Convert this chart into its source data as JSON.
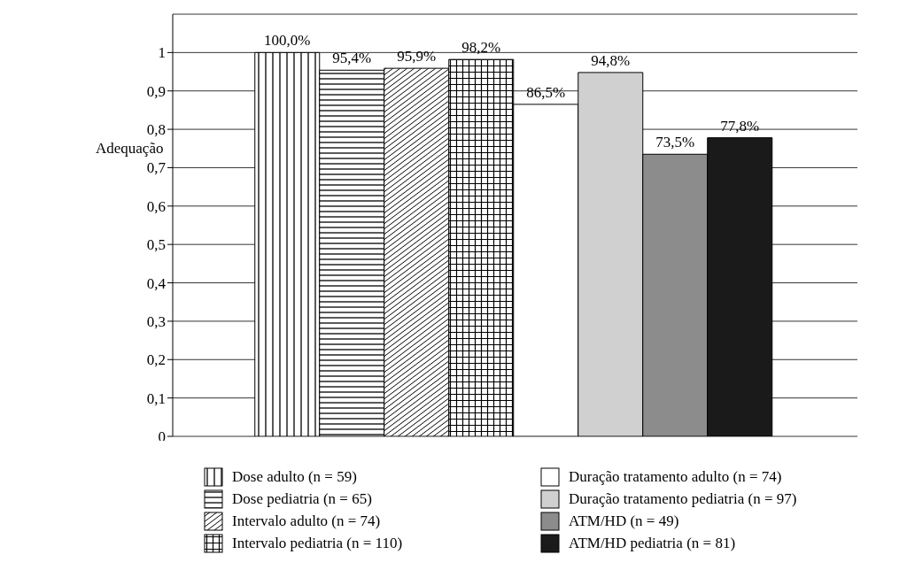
{
  "chart_data": {
    "type": "bar",
    "ylabel": "Adequação",
    "categories": [
      null
    ],
    "series": [
      {
        "name": "Dose adulto (n = 59)",
        "color": "#000000",
        "values": [
          1.0
        ],
        "value_labels": [
          "100,0%"
        ]
      },
      {
        "name": "Dose pediatria (n = 65)",
        "color": "#000000",
        "values": [
          0.954
        ],
        "value_labels": [
          "95,4%"
        ]
      },
      {
        "name": "Intervalo adulto (n = 74)",
        "color": "#000000",
        "values": [
          0.959
        ],
        "value_labels": [
          "95,9%"
        ]
      },
      {
        "name": "Intervalo pediatria (n = 110)",
        "color": "#000000",
        "values": [
          0.982
        ],
        "value_labels": [
          "98,2%"
        ]
      },
      {
        "name": "Duração tratamento adulto (n = 74)",
        "color": "#ffffff",
        "values": [
          0.865
        ],
        "value_labels": [
          "86,5%"
        ]
      },
      {
        "name": "Duração tratamento pediatria (n = 97)",
        "color": "#d0d0d0",
        "values": [
          0.948
        ],
        "value_labels": [
          "94,8%"
        ]
      },
      {
        "name": "ATM/HD (n = 49)",
        "color": "#8c8c8c",
        "values": [
          0.735
        ],
        "value_labels": [
          "73,5%"
        ]
      },
      {
        "name": "ATM/HD pediatria (n = 81)",
        "color": "#1a1a1a",
        "values": [
          0.778
        ],
        "value_labels": [
          "77,8%"
        ]
      }
    ],
    "ylim": [
      0,
      1.1
    ],
    "yticks": [
      {
        "value": 0,
        "label": "0"
      },
      {
        "value": 0.1,
        "label": "0,1"
      },
      {
        "value": 0.2,
        "label": "0,2"
      },
      {
        "value": 0.3,
        "label": "0,3"
      },
      {
        "value": 0.4,
        "label": "0,4"
      },
      {
        "value": 0.5,
        "label": "0,5"
      },
      {
        "value": 0.6,
        "label": "0,6"
      },
      {
        "value": 0.7,
        "label": "0,7"
      },
      {
        "value": 0.8,
        "label": "0,8"
      },
      {
        "value": 0.9,
        "label": "0,9"
      },
      {
        "value": 1,
        "label": "1"
      }
    ],
    "grid": "y",
    "legend": "bottom"
  }
}
